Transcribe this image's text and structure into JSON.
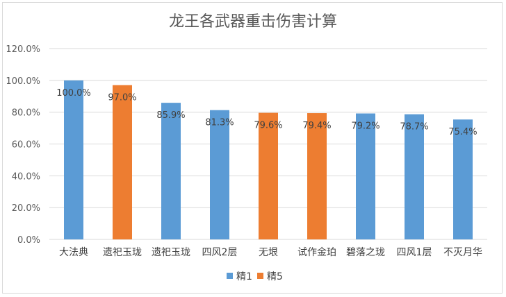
{
  "chart_data": {
    "type": "bar",
    "title": "龙王各武器重击伤害计算",
    "categories": [
      "大法典",
      "遗祀玉珑",
      "遗祀玉珑",
      "四风2层",
      "无垠",
      "试作金珀",
      "碧落之珑",
      "四风1层",
      "不灭月华"
    ],
    "values": [
      100.0,
      97.0,
      85.9,
      81.3,
      79.6,
      79.4,
      79.2,
      78.7,
      75.4
    ],
    "data_labels": [
      "100.0%",
      "97.0%",
      "85.9%",
      "81.3%",
      "79.6%",
      "79.4%",
      "79.2%",
      "78.7%",
      "75.4%"
    ],
    "bar_series": [
      0,
      1,
      0,
      0,
      1,
      1,
      0,
      0,
      0
    ],
    "series": [
      {
        "name": "精1",
        "color": "#5B9BD5"
      },
      {
        "name": "精5",
        "color": "#ED7D31"
      }
    ],
    "ylim": [
      0,
      120
    ],
    "yticks": [
      "0.0%",
      "20.0%",
      "40.0%",
      "60.0%",
      "80.0%",
      "100.0%",
      "120.0%"
    ],
    "ytick_values": [
      0,
      20,
      40,
      60,
      80,
      100,
      120
    ],
    "grid": true,
    "legend_position": "bottom"
  }
}
